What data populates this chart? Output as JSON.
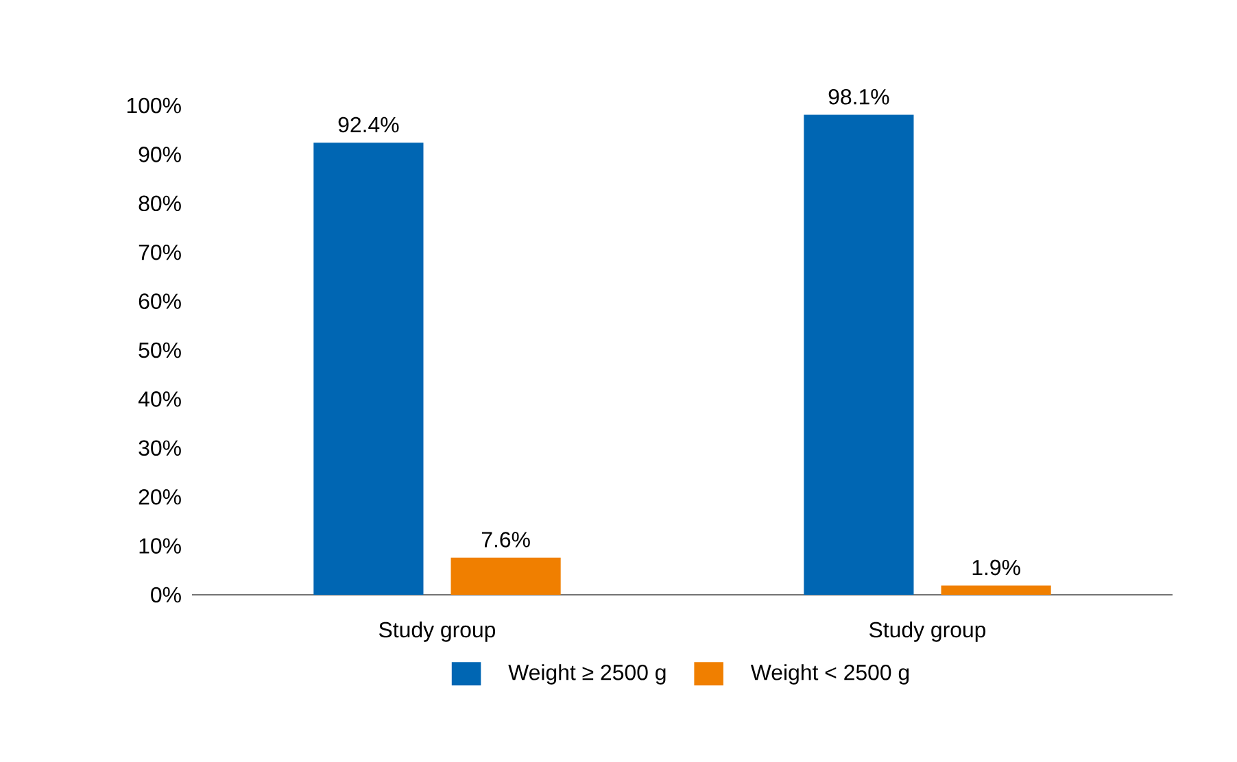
{
  "chart_data": {
    "type": "bar",
    "categories": [
      "Study group",
      "Study group"
    ],
    "series": [
      {
        "name": "Weight ≥ 2500 g",
        "color": "#0066b3",
        "values": [
          92.4,
          98.1
        ],
        "value_labels": [
          "92.4%",
          "98.1%"
        ]
      },
      {
        "name": "Weight < 2500 g",
        "color": "#f07f00",
        "values": [
          7.6,
          1.9
        ],
        "value_labels": [
          "7.6%",
          "1.9%"
        ]
      }
    ],
    "ylim": [
      0,
      100
    ],
    "yticks": [
      {
        "value": 0,
        "label": "0%"
      },
      {
        "value": 10,
        "label": "10%"
      },
      {
        "value": 20,
        "label": "20%"
      },
      {
        "value": 30,
        "label": "30%"
      },
      {
        "value": 40,
        "label": "40%"
      },
      {
        "value": 50,
        "label": "50%"
      },
      {
        "value": 60,
        "label": "60%"
      },
      {
        "value": 70,
        "label": "70%"
      },
      {
        "value": 80,
        "label": "80%"
      },
      {
        "value": 90,
        "label": "90%"
      },
      {
        "value": 100,
        "label": "100%"
      }
    ],
    "grid": false,
    "legend": "bottom"
  }
}
